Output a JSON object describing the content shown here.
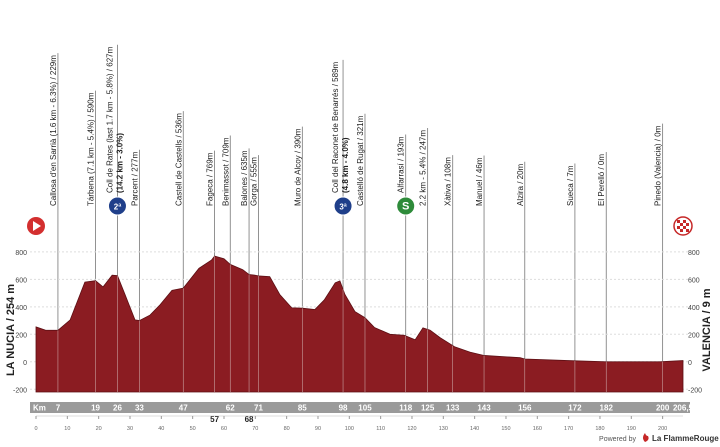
{
  "chart_data": {
    "type": "area",
    "start_label": "LA NUCIA / 254 m",
    "finish_label": "VALENCIA / 9 m",
    "x_label": "Km",
    "xlim": [
      0,
      206.5
    ],
    "ylim": [
      -220,
      850
    ],
    "yticks": [
      -200,
      0,
      200,
      400,
      600,
      800
    ],
    "xticks": [
      0,
      10,
      20,
      30,
      40,
      50,
      60,
      70,
      80,
      90,
      100,
      110,
      120,
      130,
      140,
      150,
      160,
      170,
      180,
      190,
      200
    ],
    "grid": true,
    "series": [
      {
        "color": "#8b1c22",
        "x": [
          0,
          3,
          7,
          10.9,
          15.6,
          19,
          21.4,
          24.3,
          26,
          28.4,
          31.6,
          33,
          36.4,
          39.6,
          43.4,
          47,
          52,
          56,
          57,
          60,
          62,
          66,
          68,
          70,
          71,
          74.6,
          77.8,
          81.6,
          85,
          89,
          92,
          95.5,
          97,
          98.6,
          101.8,
          105,
          108,
          113,
          117.5,
          121,
          123.5,
          125.8,
          129,
          133.7,
          138.5,
          143,
          154.5,
          156,
          172,
          182,
          199,
          206.5
        ],
        "values": [
          254,
          230,
          229,
          305,
          580,
          590,
          545,
          630,
          627,
          490,
          305,
          300,
          340,
          415,
          520,
          536,
          680,
          740,
          769,
          750,
          709,
          670,
          635,
          630,
          625,
          620,
          490,
          393,
          390,
          380,
          450,
          575,
          589,
          490,
          365,
          321,
          250,
          200,
          193,
          160,
          247,
          230,
          175,
          108,
          70,
          46,
          30,
          20,
          7,
          0,
          0,
          9
        ]
      }
    ],
    "km_marks": [
      7,
      19,
      26,
      33,
      47,
      57,
      62,
      68,
      71,
      85,
      98,
      105,
      118,
      125,
      133,
      143,
      156,
      172,
      182,
      200,
      {
        "value": 206.5,
        "label": "206,5"
      }
    ],
    "waypoints": [
      {
        "label": "Callosa d'en Sarrià (1.6 km - 6.3%) / 229m"
      },
      {
        "label": "Tárbena (7.1 km - 5.4%) / 590m"
      },
      {
        "label": "Coll de Rates (last 1.7 km - 5.8%) / 627m",
        "detail": "(14.2 km - 3.0%)",
        "badge": "2ª"
      },
      {
        "label": "Parcent / 277m"
      },
      {
        "label": "Castell de Castells / 536m"
      },
      {
        "label": "Fageca / 769m"
      },
      {
        "label": "Benimassot / 709m"
      },
      {
        "label": "Balones / 635m"
      },
      {
        "label": "Gorga / 555m"
      },
      {
        "label": "Muro de Alcoy / 390m"
      },
      {
        "label": "Coll del Raconet de Benarrés / 589m",
        "detail": "(4.8 km - 4.0%)",
        "badge": "3ª"
      },
      {
        "label": "Castelló de Rugat / 321m"
      },
      {
        "label": "Alfarrasí / 193m",
        "badge": "S"
      },
      {
        "label": "2.2 km - 5.4% / 247m"
      },
      {
        "label": "Xàtiva / 108m"
      },
      {
        "label": "Manuel / 46m"
      },
      {
        "label": "Alzira / 20m"
      },
      {
        "label": "Sueca / 7m"
      },
      {
        "label": "El Perelló / 0m"
      },
      {
        "label": "Pinedo (Valencia) / 0m"
      }
    ],
    "credit": "Powered by",
    "credit_brand": "La FlammeRouge"
  }
}
